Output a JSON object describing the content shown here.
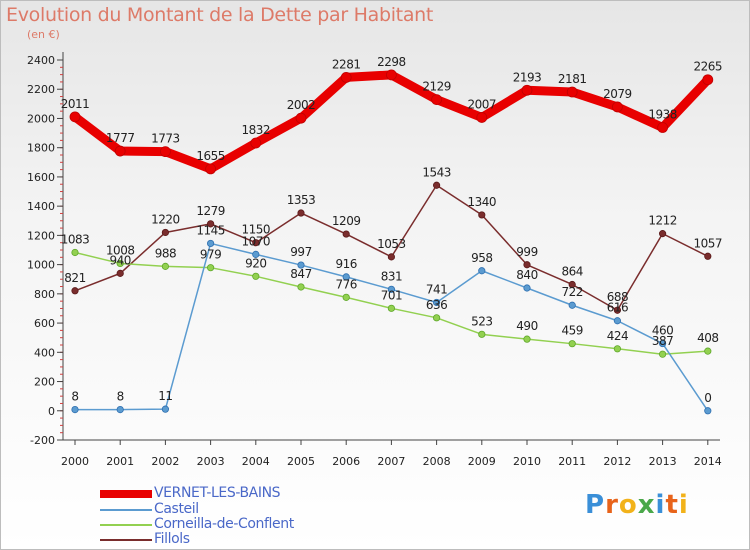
{
  "title": "Evolution du Montant de la Dette par Habitant",
  "unit": "(en €)",
  "logo": {
    "letters": [
      "P",
      "r",
      "o",
      "x",
      "i",
      "t",
      "i"
    ],
    "colors": [
      "#3a8fd8",
      "#e8631a",
      "#f2b21a",
      "#4aa84a",
      "#3a8fd8",
      "#e8631a",
      "#f2b21a"
    ]
  },
  "chart_data": {
    "type": "line",
    "x": [
      "2000",
      "2001",
      "2002",
      "2003",
      "2004",
      "2005",
      "2006",
      "2007",
      "2008",
      "2009",
      "2010",
      "2011",
      "2012",
      "2013",
      "2014"
    ],
    "ylim": [
      -200,
      2400
    ],
    "yticks": [
      "-200",
      "0",
      "200",
      "400",
      "600",
      "800",
      "1000",
      "1200",
      "1400",
      "1600",
      "1800",
      "2000",
      "2200",
      "2400"
    ],
    "grid": false,
    "legend_position": "bottom-left",
    "series": [
      {
        "name": "VERNET-LES-BAINS",
        "color": "#e80000",
        "width": 9,
        "values": [
          2011,
          1777,
          1773,
          1655,
          1832,
          2002,
          2281,
          2298,
          2129,
          2007,
          2193,
          2181,
          2079,
          1938,
          2265
        ],
        "labels": [
          "2011",
          "1777",
          "1773",
          "1655",
          "1832",
          "2002",
          "2281",
          "2298",
          "2129",
          "2007",
          "2193",
          "2181",
          "2079",
          "1938",
          "2265"
        ]
      },
      {
        "name": "Casteil",
        "color": "#5b9bd0",
        "width": 1.5,
        "values": [
          8,
          8,
          11,
          1145,
          1070,
          997,
          916,
          831,
          741,
          958,
          840,
          722,
          616,
          460,
          0
        ],
        "labels": [
          "8",
          "8",
          "11",
          "1145",
          "1070",
          "997",
          "916",
          "831",
          "741",
          "958",
          "840",
          "722",
          "616",
          "460",
          "0"
        ]
      },
      {
        "name": "Corneilla-de-Conflent",
        "color": "#92d050",
        "width": 1.5,
        "values": [
          1083,
          1008,
          988,
          979,
          920,
          847,
          776,
          701,
          636,
          523,
          490,
          459,
          424,
          387,
          408
        ],
        "labels": [
          "1083",
          "1008",
          "988",
          "979",
          "920",
          "847",
          "776",
          "701",
          "636",
          "523",
          "490",
          "459",
          "424",
          "387",
          "408"
        ]
      },
      {
        "name": "Fillols",
        "color": "#7a2d2d",
        "width": 1.5,
        "values": [
          821,
          940,
          1220,
          1279,
          1150,
          1353,
          1209,
          1053,
          1543,
          1340,
          999,
          864,
          688,
          1212,
          1057
        ],
        "labels": [
          "821",
          "940",
          "1220",
          "1279",
          "1150",
          "1353",
          "1209",
          "1053",
          "1543",
          "1340",
          "999",
          "864",
          "688",
          "1212",
          "1057"
        ]
      }
    ]
  }
}
